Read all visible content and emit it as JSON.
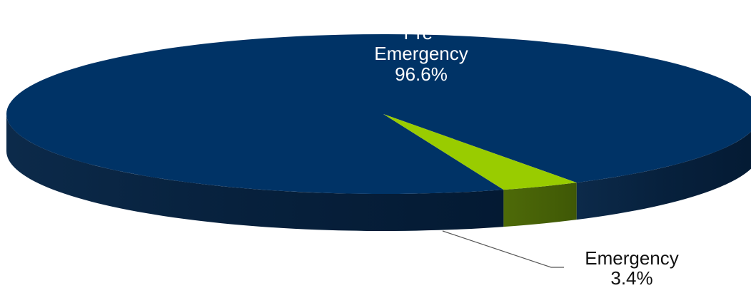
{
  "chart_data": {
    "type": "pie",
    "style": "3d",
    "slices": [
      {
        "name": "Pre-Emergency",
        "label_lines": [
          "Pre-",
          "Emergency",
          "96.6%"
        ],
        "value": 96.6,
        "color": "#003366"
      },
      {
        "name": "Emergency",
        "label_lines": [
          "Emergency",
          "3.4%"
        ],
        "value": 3.4,
        "color": "#99CC00"
      }
    ]
  }
}
